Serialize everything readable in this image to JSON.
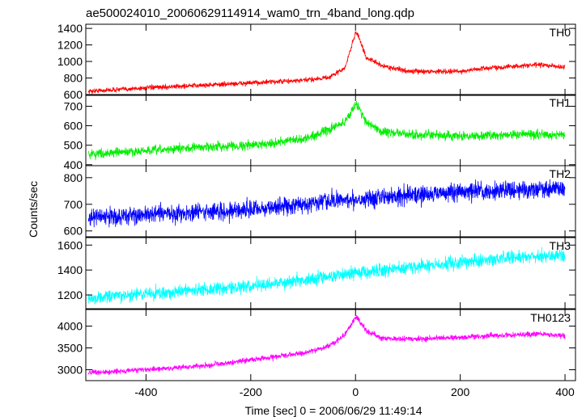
{
  "chart_data": {
    "type": "line",
    "title": "ae500024010_20060629114914_wam0_trn_4band_long.qdp",
    "xlabel": "Time [sec] 0 = 2006/06/29 11:49:14",
    "ylabel": "Counts/sec",
    "xlim": [
      -515,
      420
    ],
    "xticks": [
      -400,
      -200,
      0,
      200,
      400
    ],
    "grid": false,
    "panels": [
      {
        "name": "TH0",
        "color": "#ff0000",
        "ylim": [
          590,
          1450
        ],
        "yticks": [
          600,
          800,
          1000,
          1200,
          1400
        ],
        "noise": 28,
        "x": [
          -510,
          -400,
          -300,
          -200,
          -100,
          -50,
          -20,
          0,
          5,
          20,
          50,
          100,
          200,
          250,
          300,
          350,
          400
        ],
        "y": [
          640,
          680,
          710,
          740,
          770,
          810,
          920,
          1350,
          1320,
          1050,
          950,
          880,
          880,
          920,
          940,
          960,
          930
        ]
      },
      {
        "name": "TH1",
        "color": "#00ee00",
        "ylim": [
          395,
          760
        ],
        "yticks": [
          400,
          500,
          600,
          700
        ],
        "noise": 22,
        "x": [
          -510,
          -400,
          -300,
          -200,
          -100,
          -50,
          -20,
          0,
          5,
          20,
          50,
          100,
          200,
          300,
          400
        ],
        "y": [
          455,
          470,
          490,
          500,
          530,
          580,
          620,
          710,
          700,
          620,
          570,
          555,
          545,
          555,
          555
        ]
      },
      {
        "name": "TH2",
        "color": "#0000ff",
        "ylim": [
          578,
          845
        ],
        "yticks": [
          600,
          700,
          800
        ],
        "noise": 32,
        "x": [
          -510,
          -400,
          -300,
          -200,
          -100,
          0,
          100,
          200,
          300,
          400
        ],
        "y": [
          650,
          660,
          670,
          680,
          700,
          720,
          735,
          745,
          755,
          760
        ]
      },
      {
        "name": "TH3",
        "color": "#00ffff",
        "ylim": [
          1090,
          1660
        ],
        "yticks": [
          1200,
          1400,
          1600
        ],
        "noise": 50,
        "x": [
          -510,
          -400,
          -300,
          -200,
          -100,
          0,
          100,
          200,
          300,
          400
        ],
        "y": [
          1170,
          1210,
          1240,
          1270,
          1320,
          1380,
          1420,
          1460,
          1500,
          1520
        ]
      },
      {
        "name": "TH0123",
        "color": "#ff00ff",
        "ylim": [
          2750,
          4380
        ],
        "yticks": [
          3000,
          3500,
          4000
        ],
        "noise": 60,
        "x": [
          -510,
          -400,
          -300,
          -200,
          -100,
          -50,
          -20,
          0,
          5,
          20,
          50,
          100,
          200,
          300,
          350,
          400
        ],
        "y": [
          2930,
          3000,
          3080,
          3220,
          3380,
          3550,
          3800,
          4200,
          4170,
          3900,
          3720,
          3700,
          3740,
          3800,
          3820,
          3780
        ]
      }
    ]
  }
}
